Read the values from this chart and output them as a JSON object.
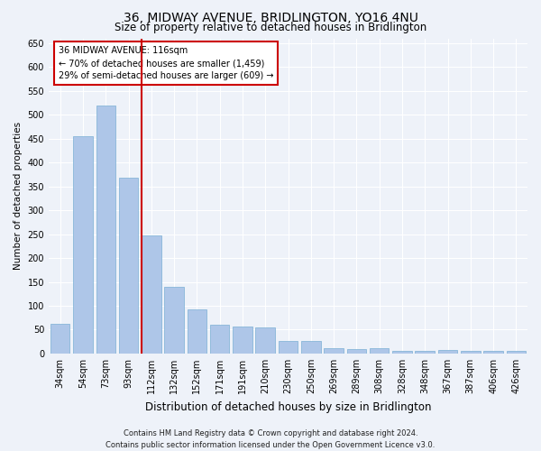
{
  "title": "36, MIDWAY AVENUE, BRIDLINGTON, YO16 4NU",
  "subtitle": "Size of property relative to detached houses in Bridlington",
  "xlabel": "Distribution of detached houses by size in Bridlington",
  "ylabel": "Number of detached properties",
  "footer_line1": "Contains HM Land Registry data © Crown copyright and database right 2024.",
  "footer_line2": "Contains public sector information licensed under the Open Government Licence v3.0.",
  "annotation_line1": "36 MIDWAY AVENUE: 116sqm",
  "annotation_line2": "← 70% of detached houses are smaller (1,459)",
  "annotation_line3": "29% of semi-detached houses are larger (609) →",
  "categories": [
    "34sqm",
    "54sqm",
    "73sqm",
    "93sqm",
    "112sqm",
    "132sqm",
    "152sqm",
    "171sqm",
    "191sqm",
    "210sqm",
    "230sqm",
    "250sqm",
    "269sqm",
    "289sqm",
    "308sqm",
    "328sqm",
    "348sqm",
    "367sqm",
    "387sqm",
    "406sqm",
    "426sqm"
  ],
  "values": [
    62,
    455,
    520,
    368,
    248,
    140,
    93,
    60,
    57,
    55,
    27,
    27,
    12,
    10,
    12,
    6,
    6,
    8,
    5,
    6,
    5
  ],
  "bar_color": "#aec6e8",
  "bar_edge_color": "#7aafd4",
  "marker_bar_index": 4,
  "marker_line_color": "#cc0000",
  "annotation_box_color": "#ffffff",
  "annotation_box_edge": "#cc0000",
  "background_color": "#eef2f9",
  "grid_color": "#ffffff",
  "ylim": [
    0,
    660
  ],
  "yticks": [
    0,
    50,
    100,
    150,
    200,
    250,
    300,
    350,
    400,
    450,
    500,
    550,
    600,
    650
  ],
  "title_fontsize": 10,
  "subtitle_fontsize": 8.5,
  "ylabel_fontsize": 7.5,
  "xlabel_fontsize": 8.5,
  "tick_fontsize": 7,
  "annotation_fontsize": 7,
  "footer_fontsize": 6
}
